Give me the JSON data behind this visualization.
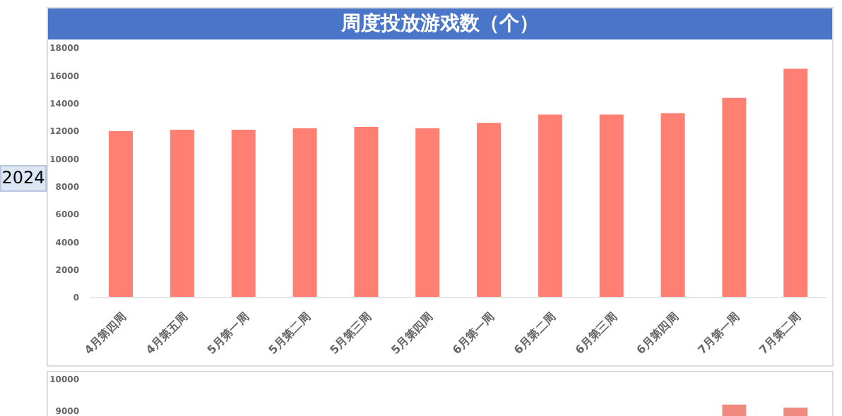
{
  "chart_data": [
    {
      "type": "bar",
      "title": "周度投放游戏数（个）",
      "annotations": [
        "2024"
      ],
      "categories": [
        "4月第四周",
        "4月第五周",
        "5月第一周",
        "5月第二周",
        "5月第三周",
        "5月第四周",
        "6月第一周",
        "6月第二周",
        "6月第三周",
        "6月第四周",
        "7月第一周",
        "7月第二周"
      ],
      "values": [
        12000,
        12100,
        12100,
        12200,
        12300,
        12200,
        12600,
        13200,
        13200,
        13300,
        14400,
        16500
      ],
      "color": "#ff7f73",
      "ylim": [
        0,
        18000
      ],
      "yticks": [
        0,
        2000,
        4000,
        6000,
        8000,
        10000,
        12000,
        14000,
        16000,
        18000
      ],
      "grid": false,
      "legend": false
    },
    {
      "type": "bar",
      "categories": [
        null,
        null,
        null,
        null,
        null,
        null,
        null,
        null,
        null,
        null,
        null,
        null
      ],
      "values": [
        null,
        null,
        null,
        null,
        null,
        null,
        null,
        null,
        null,
        null,
        9200,
        9100
      ],
      "color": "#f08a7e",
      "ylim": [
        8700,
        10000
      ],
      "yticks": [
        9000,
        10000
      ],
      "tick_labels": "y",
      "grid": false,
      "legend": false
    }
  ]
}
